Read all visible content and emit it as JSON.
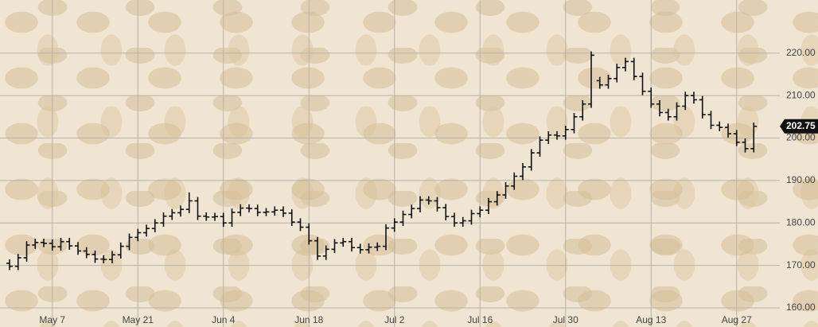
{
  "chart_data": {
    "type": "ohlc",
    "categories": [
      null,
      null,
      null,
      null,
      null,
      "May 7",
      null,
      null,
      null,
      null,
      null,
      null,
      null,
      null,
      null,
      "May 21",
      null,
      null,
      null,
      null,
      null,
      null,
      null,
      null,
      null,
      "Jun 4",
      null,
      null,
      null,
      null,
      null,
      null,
      null,
      null,
      null,
      "Jun 18",
      null,
      null,
      null,
      null,
      null,
      null,
      null,
      null,
      null,
      "Jul 2",
      null,
      null,
      null,
      null,
      null,
      null,
      null,
      null,
      null,
      "Jul 16",
      null,
      null,
      null,
      null,
      null,
      null,
      null,
      null,
      null,
      "Jul 30",
      null,
      null,
      null,
      null,
      null,
      null,
      null,
      null,
      null,
      "Aug 13",
      null,
      null,
      null,
      null,
      null,
      null,
      null,
      null,
      null,
      "Aug 27",
      null,
      null
    ],
    "open": [
      170.5,
      169.8,
      171.8,
      174.8,
      175.4,
      175.2,
      174.4,
      175.6,
      174.6,
      173.4,
      172.6,
      171.5,
      171.4,
      172.5,
      174.5,
      176.6,
      177.7,
      178.7,
      180,
      181.6,
      182.4,
      183.2,
      185.2,
      181.6,
      181.4,
      181.5,
      180,
      182.5,
      183.5,
      183.4,
      182.5,
      182.6,
      183,
      182.3,
      180.2,
      179,
      175.8,
      172.2,
      173.8,
      175.3,
      175.6,
      174.2,
      173.7,
      174.3,
      174.5,
      178.8,
      180.2,
      182,
      183.4,
      185.4,
      185.2,
      183.6,
      181.5,
      180,
      180.5,
      182.2,
      183,
      185,
      186.6,
      188.7,
      191,
      193.2,
      196.5,
      199.5,
      200.7,
      200.5,
      202,
      205,
      208,
      213.5,
      212.5,
      214,
      216.6,
      218,
      214.5,
      211,
      208,
      206,
      205,
      207.5,
      210,
      209,
      205.5,
      203,
      202.5,
      201,
      199,
      197.5
    ],
    "high": [
      171.4,
      172.7,
      175.7,
      176.3,
      176.3,
      176.1,
      176.5,
      176.5,
      175.5,
      174.3,
      173.5,
      172.4,
      173.4,
      175.4,
      177.5,
      178.6,
      179.6,
      180.9,
      182.5,
      183.3,
      184.1,
      187.2,
      186.1,
      182.5,
      182.4,
      182.4,
      183.4,
      184.4,
      184.4,
      184.3,
      183.5,
      183.9,
      183.9,
      183.2,
      181.1,
      179.9,
      176.7,
      174.7,
      176.2,
      176.5,
      176.5,
      175.1,
      175.2,
      175.4,
      179.7,
      181.1,
      182.9,
      184.3,
      186.3,
      186.3,
      186.1,
      184.5,
      182.4,
      181.4,
      183.1,
      183.9,
      185.9,
      187.5,
      189.6,
      191.9,
      194.1,
      197.4,
      200.4,
      201.6,
      201.6,
      202.9,
      205.9,
      208.9,
      220.4,
      214.4,
      214.9,
      217.5,
      218.9,
      218.9,
      215.4,
      211.9,
      208.9,
      206.9,
      208.4,
      210.9,
      210.9,
      209.9,
      206.4,
      203.9,
      203.4,
      201.9,
      199.9,
      203.65
    ],
    "low": [
      168.9,
      168.9,
      170.9,
      173.9,
      174.3,
      173.5,
      173.5,
      173.7,
      172.5,
      171.7,
      170.6,
      170.5,
      170.5,
      171.6,
      173.6,
      175.7,
      176.8,
      177.8,
      179.1,
      180.7,
      181.5,
      182.3,
      180.7,
      180.5,
      180.5,
      179.1,
      179.1,
      181.6,
      182.5,
      181.6,
      181.6,
      181.7,
      181.4,
      179.3,
      178.1,
      174.9,
      171.3,
      171.3,
      172.9,
      174.4,
      173.3,
      172.8,
      172.8,
      173.4,
      173.6,
      177.9,
      179.3,
      181.1,
      182.5,
      184.3,
      182.7,
      180.6,
      179.1,
      179.1,
      179.6,
      181.3,
      182.1,
      184.1,
      185.7,
      187.8,
      190.1,
      192.3,
      195.6,
      198.6,
      199.6,
      199.6,
      201.1,
      204.1,
      207.1,
      211.6,
      211.6,
      213.1,
      215.7,
      213.6,
      210.1,
      207.1,
      205.1,
      204.1,
      204.1,
      206.6,
      208.1,
      204.6,
      202.1,
      201.6,
      200.1,
      198.1,
      196.6,
      196.6
    ],
    "close": [
      169.8,
      171.8,
      174.8,
      175.4,
      175.2,
      174.4,
      175.6,
      174.6,
      173.4,
      172.6,
      171.5,
      171.4,
      172.5,
      174.5,
      176.6,
      177.7,
      178.7,
      180,
      181.6,
      182.4,
      183.2,
      185.2,
      181.6,
      181.4,
      181.5,
      180,
      182.5,
      183.5,
      183.4,
      182.5,
      182.6,
      183,
      182.3,
      180.2,
      179,
      175.8,
      172.2,
      173.8,
      175.3,
      175.6,
      174.2,
      173.7,
      174.3,
      174.5,
      178.8,
      180.2,
      182,
      183.4,
      185.4,
      185.2,
      183.6,
      181.5,
      180,
      180.5,
      182.2,
      183,
      185,
      186.6,
      188.7,
      191,
      193.2,
      196.5,
      199.5,
      200.7,
      200.5,
      202,
      205,
      208,
      219.5,
      212.5,
      214,
      216.6,
      218,
      214.5,
      211,
      208,
      206,
      205,
      207.5,
      210,
      209,
      205.5,
      203,
      202.5,
      201,
      199,
      197.5,
      202.75
    ],
    "color": "#111111",
    "ylim": [
      155.5,
      232.5
    ],
    "yticks": [
      {
        "value": 160,
        "label": "160.00"
      },
      {
        "value": 170,
        "label": "170.00"
      },
      {
        "value": 180,
        "label": "180.00"
      },
      {
        "value": 190,
        "label": "190.00"
      },
      {
        "value": 200,
        "label": "200.00"
      },
      {
        "value": 210,
        "label": "210.00"
      },
      {
        "value": 220,
        "label": "220.00"
      }
    ],
    "grid": true
  }
}
